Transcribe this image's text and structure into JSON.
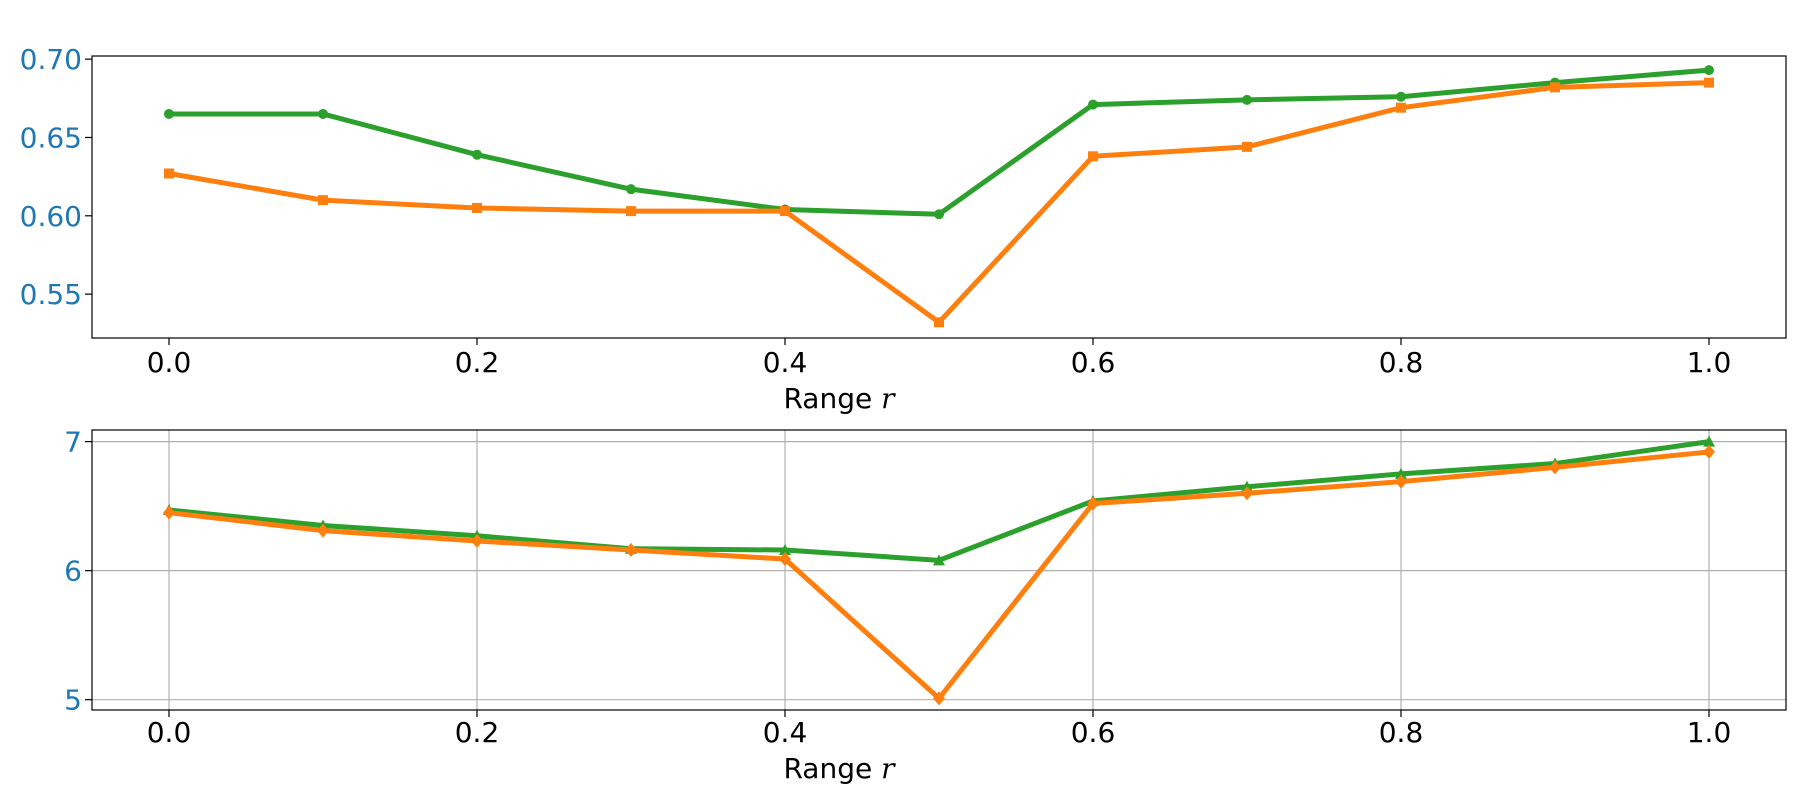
{
  "chart_data": [
    {
      "type": "line",
      "xlabel": "Range",
      "xlabel_var": "r",
      "xlim": [
        -0.05,
        1.05
      ],
      "ylim": [
        0.522,
        0.702
      ],
      "xticks": [
        0.0,
        0.2,
        0.4,
        0.6,
        0.8,
        1.0
      ],
      "xtick_labels": [
        "0.0",
        "0.2",
        "0.4",
        "0.6",
        "0.8",
        "1.0"
      ],
      "yticks": [
        0.55,
        0.6,
        0.65,
        0.7
      ],
      "ytick_labels": [
        "0.55",
        "0.60",
        "0.65",
        "0.70"
      ],
      "ytick_color": "#1f77b4",
      "grid": false,
      "x": [
        0.0,
        0.1,
        0.2,
        0.3,
        0.4,
        0.5,
        0.6,
        0.7,
        0.8,
        0.9,
        1.0
      ],
      "series": [
        {
          "color": "#2ca02c",
          "marker": "circle",
          "values": [
            0.665,
            0.665,
            0.639,
            0.617,
            0.604,
            0.601,
            0.671,
            0.674,
            0.676,
            0.685,
            0.693
          ]
        },
        {
          "color": "#ff7f0e",
          "marker": "square",
          "values": [
            0.627,
            0.61,
            0.605,
            0.603,
            0.603,
            0.532,
            0.638,
            0.644,
            0.669,
            0.682,
            0.685
          ]
        }
      ]
    },
    {
      "type": "line",
      "xlabel": "Range",
      "xlabel_var": "r",
      "xlim": [
        -0.05,
        1.05
      ],
      "ylim": [
        4.92,
        7.09
      ],
      "xticks": [
        0.0,
        0.2,
        0.4,
        0.6,
        0.8,
        1.0
      ],
      "xtick_labels": [
        "0.0",
        "0.2",
        "0.4",
        "0.6",
        "0.8",
        "1.0"
      ],
      "yticks": [
        5,
        6,
        7
      ],
      "ytick_labels": [
        "5",
        "6",
        "7"
      ],
      "ytick_color": "#1f77b4",
      "grid": true,
      "x": [
        0.0,
        0.1,
        0.2,
        0.3,
        0.4,
        0.5,
        0.6,
        0.7,
        0.8,
        0.9,
        1.0
      ],
      "series": [
        {
          "color": "#2ca02c",
          "marker": "triangle",
          "values": [
            6.47,
            6.35,
            6.27,
            6.17,
            6.16,
            6.08,
            6.54,
            6.65,
            6.75,
            6.83,
            7.0
          ]
        },
        {
          "color": "#ff7f0e",
          "marker": "diamond",
          "values": [
            6.45,
            6.31,
            6.23,
            6.16,
            6.09,
            5.01,
            6.52,
            6.6,
            6.69,
            6.8,
            6.92
          ]
        }
      ]
    }
  ]
}
